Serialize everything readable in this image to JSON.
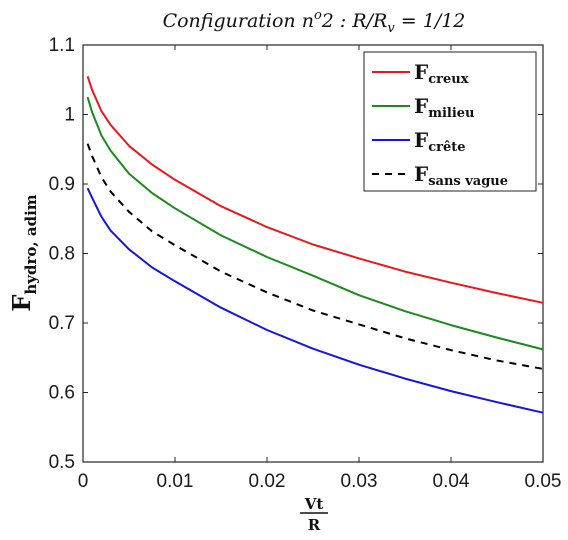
{
  "chart_data": {
    "type": "line",
    "title": "Configuration n°2 : R/R_v = 1/12",
    "title_parts": {
      "main": "Configuration n",
      "sup": "o",
      "mid": "2 : R/R",
      "sub": "v",
      "tail": " = 1/12"
    },
    "xlabel": {
      "numerator": "Vt",
      "denominator": "R"
    },
    "ylabel": {
      "main": "F",
      "sub": "hydro, adim"
    },
    "xlim": [
      0,
      0.05
    ],
    "ylim": [
      0.5,
      1.1
    ],
    "xticks": [
      "0",
      "0.01",
      "0.02",
      "0.03",
      "0.04",
      "0.05"
    ],
    "yticks": [
      "0.5",
      "0.6",
      "0.7",
      "0.8",
      "0.9",
      "1",
      "1.1"
    ],
    "grid": false,
    "legend_position": "top-right",
    "x": [
      0.0005,
      0.001,
      0.002,
      0.003,
      0.005,
      0.0075,
      0.01,
      0.015,
      0.02,
      0.025,
      0.03,
      0.035,
      0.04,
      0.045,
      0.05
    ],
    "series": [
      {
        "name": "F",
        "sub": "creux",
        "color": "#e8191a",
        "dash": "none",
        "values": [
          1.055,
          1.035,
          1.005,
          0.985,
          0.955,
          0.928,
          0.906,
          0.868,
          0.838,
          0.813,
          0.793,
          0.774,
          0.758,
          0.743,
          0.729
        ]
      },
      {
        "name": "F",
        "sub": "milieu",
        "color": "#1b8c1b",
        "dash": "none",
        "values": [
          1.025,
          1.003,
          0.97,
          0.948,
          0.915,
          0.887,
          0.865,
          0.826,
          0.795,
          0.768,
          0.74,
          0.717,
          0.697,
          0.679,
          0.662
        ]
      },
      {
        "name": "F",
        "sub": "crête",
        "color": "#1515e0",
        "dash": "none",
        "values": [
          0.894,
          0.88,
          0.853,
          0.833,
          0.806,
          0.78,
          0.76,
          0.722,
          0.69,
          0.663,
          0.64,
          0.62,
          0.602,
          0.586,
          0.571
        ]
      },
      {
        "name": "F",
        "sub": "sans vague",
        "color": "#000000",
        "dash": "7,6",
        "values": [
          0.958,
          0.94,
          0.91,
          0.889,
          0.86,
          0.832,
          0.812,
          0.774,
          0.744,
          0.718,
          0.698,
          0.678,
          0.661,
          0.646,
          0.634
        ]
      }
    ]
  }
}
